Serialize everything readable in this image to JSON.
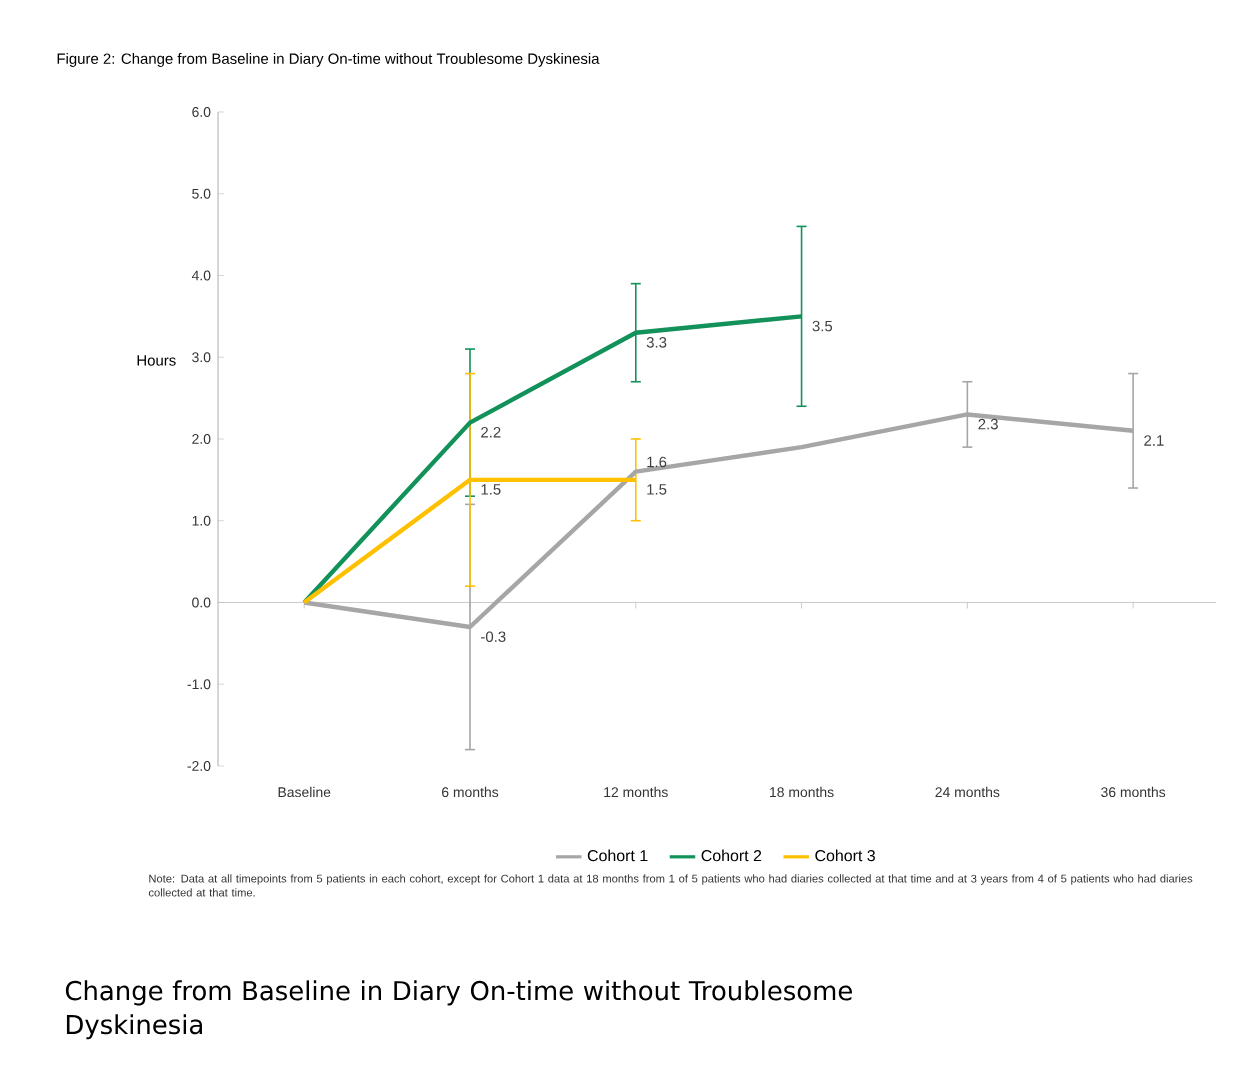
{
  "chart_data": {
    "type": "line",
    "title": "Figure 2:  Change from Baseline in Diary On-time without Troublesome Dyskinesia",
    "ylabel": "Hours",
    "categories": [
      "Baseline",
      "6 months",
      "12 months",
      "18 months",
      "24 months",
      "36 months"
    ],
    "series": [
      {
        "name": "Cohort 1",
        "color": "#a6a6a6",
        "values": [
          0,
          -0.3,
          1.6,
          1.9,
          2.3,
          2.1
        ],
        "value_labels": [
          null,
          "-0.3",
          "1.6",
          null,
          "2.3",
          "2.1"
        ],
        "errors": [
          null,
          [
            -1.8,
            1.2
          ],
          null,
          null,
          [
            1.9,
            2.7
          ],
          [
            1.4,
            2.8
          ]
        ]
      },
      {
        "name": "Cohort 2",
        "color": "#12915a",
        "values": [
          0,
          2.2,
          3.3,
          3.5,
          null,
          null
        ],
        "value_labels": [
          null,
          "2.2",
          "3.3",
          "3.5",
          null,
          null
        ],
        "errors": [
          null,
          [
            1.3,
            3.1
          ],
          [
            2.7,
            3.9
          ],
          [
            2.4,
            4.6
          ],
          null,
          null
        ]
      },
      {
        "name": "Cohort 3",
        "color": "#ffc000",
        "values": [
          0,
          1.5,
          1.5,
          null,
          null,
          null
        ],
        "value_labels": [
          null,
          "1.5",
          "1.5",
          null,
          null,
          null
        ],
        "errors": [
          null,
          [
            0.2,
            2.8
          ],
          [
            1.0,
            2.0
          ],
          null,
          null,
          null
        ]
      }
    ],
    "ylim": [
      -2,
      6
    ],
    "yticks": [
      {
        "value": -2,
        "label": "-2.0"
      },
      {
        "value": -1,
        "label": "-1.0"
      },
      {
        "value": 0,
        "label": "0.0"
      },
      {
        "value": 1,
        "label": "1.0"
      },
      {
        "value": 2,
        "label": "2.0"
      },
      {
        "value": 3,
        "label": "3.0"
      },
      {
        "value": 4,
        "label": "4.0"
      },
      {
        "value": 5,
        "label": "5.0"
      },
      {
        "value": 6,
        "label": "6.0"
      }
    ],
    "grid": false,
    "ref_lines": [
      {
        "axis": "y",
        "value": 0,
        "color": "#bfbfbf"
      }
    ],
    "legend": "bottom",
    "marker": "none",
    "line_style": "solid",
    "annotations": [
      "Note: Data at all timepoints from 5 patients in each cohort, except for Cohort 1 data at 18 months from 1 of 5 patients who had diaries collected at that time and at 3 years from 4 of 5 patients who had diaries collected at that time.",
      "Change from Baseline in Diary On-time without Troublesome Dyskinesia"
    ]
  }
}
